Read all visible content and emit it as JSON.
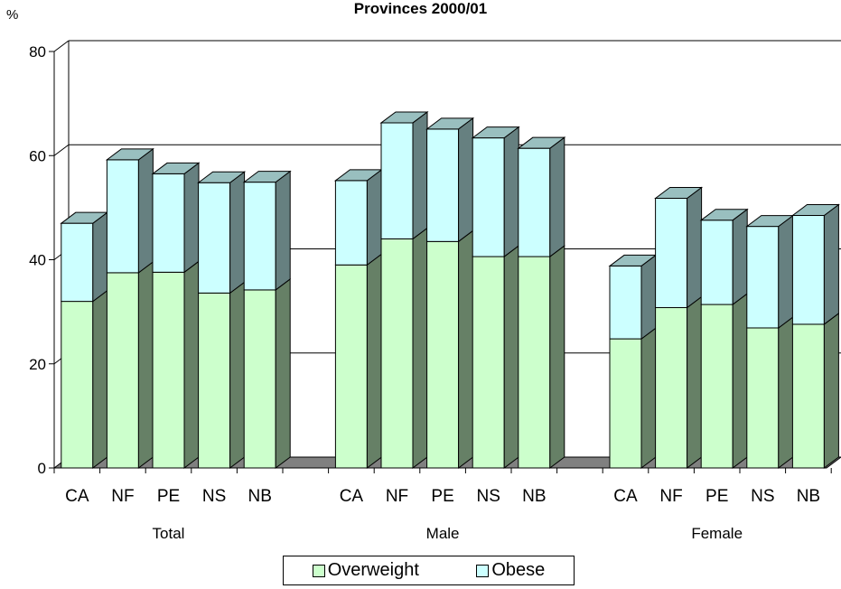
{
  "chart_data": {
    "type": "bar",
    "stacked": true,
    "title": "Provinces 2000/01",
    "ylabel": "%",
    "ylim": [
      0,
      80
    ],
    "yticks": [
      0,
      20,
      40,
      60,
      80
    ],
    "grid": true,
    "legend_position": "bottom",
    "groups": [
      "Total",
      "Male",
      "Female"
    ],
    "categories": [
      "CA",
      "NF",
      "PE",
      "NS",
      "NB"
    ],
    "series": [
      {
        "name": "Overweight",
        "color": "#ccffcc",
        "values": [
          [
            32,
            37.5,
            37.6,
            33.6,
            34.2
          ],
          [
            39,
            44,
            43.5,
            40.6,
            40.6
          ],
          [
            24.8,
            30.8,
            31.4,
            26.9,
            27.6
          ]
        ]
      },
      {
        "name": "Obese",
        "color": "#ccffff",
        "values": [
          [
            15,
            21.7,
            18.9,
            21.2,
            20.7
          ],
          [
            16.2,
            22.3,
            21.6,
            22.8,
            20.8
          ],
          [
            14,
            21,
            16.2,
            19.5,
            20.9
          ]
        ]
      }
    ]
  }
}
